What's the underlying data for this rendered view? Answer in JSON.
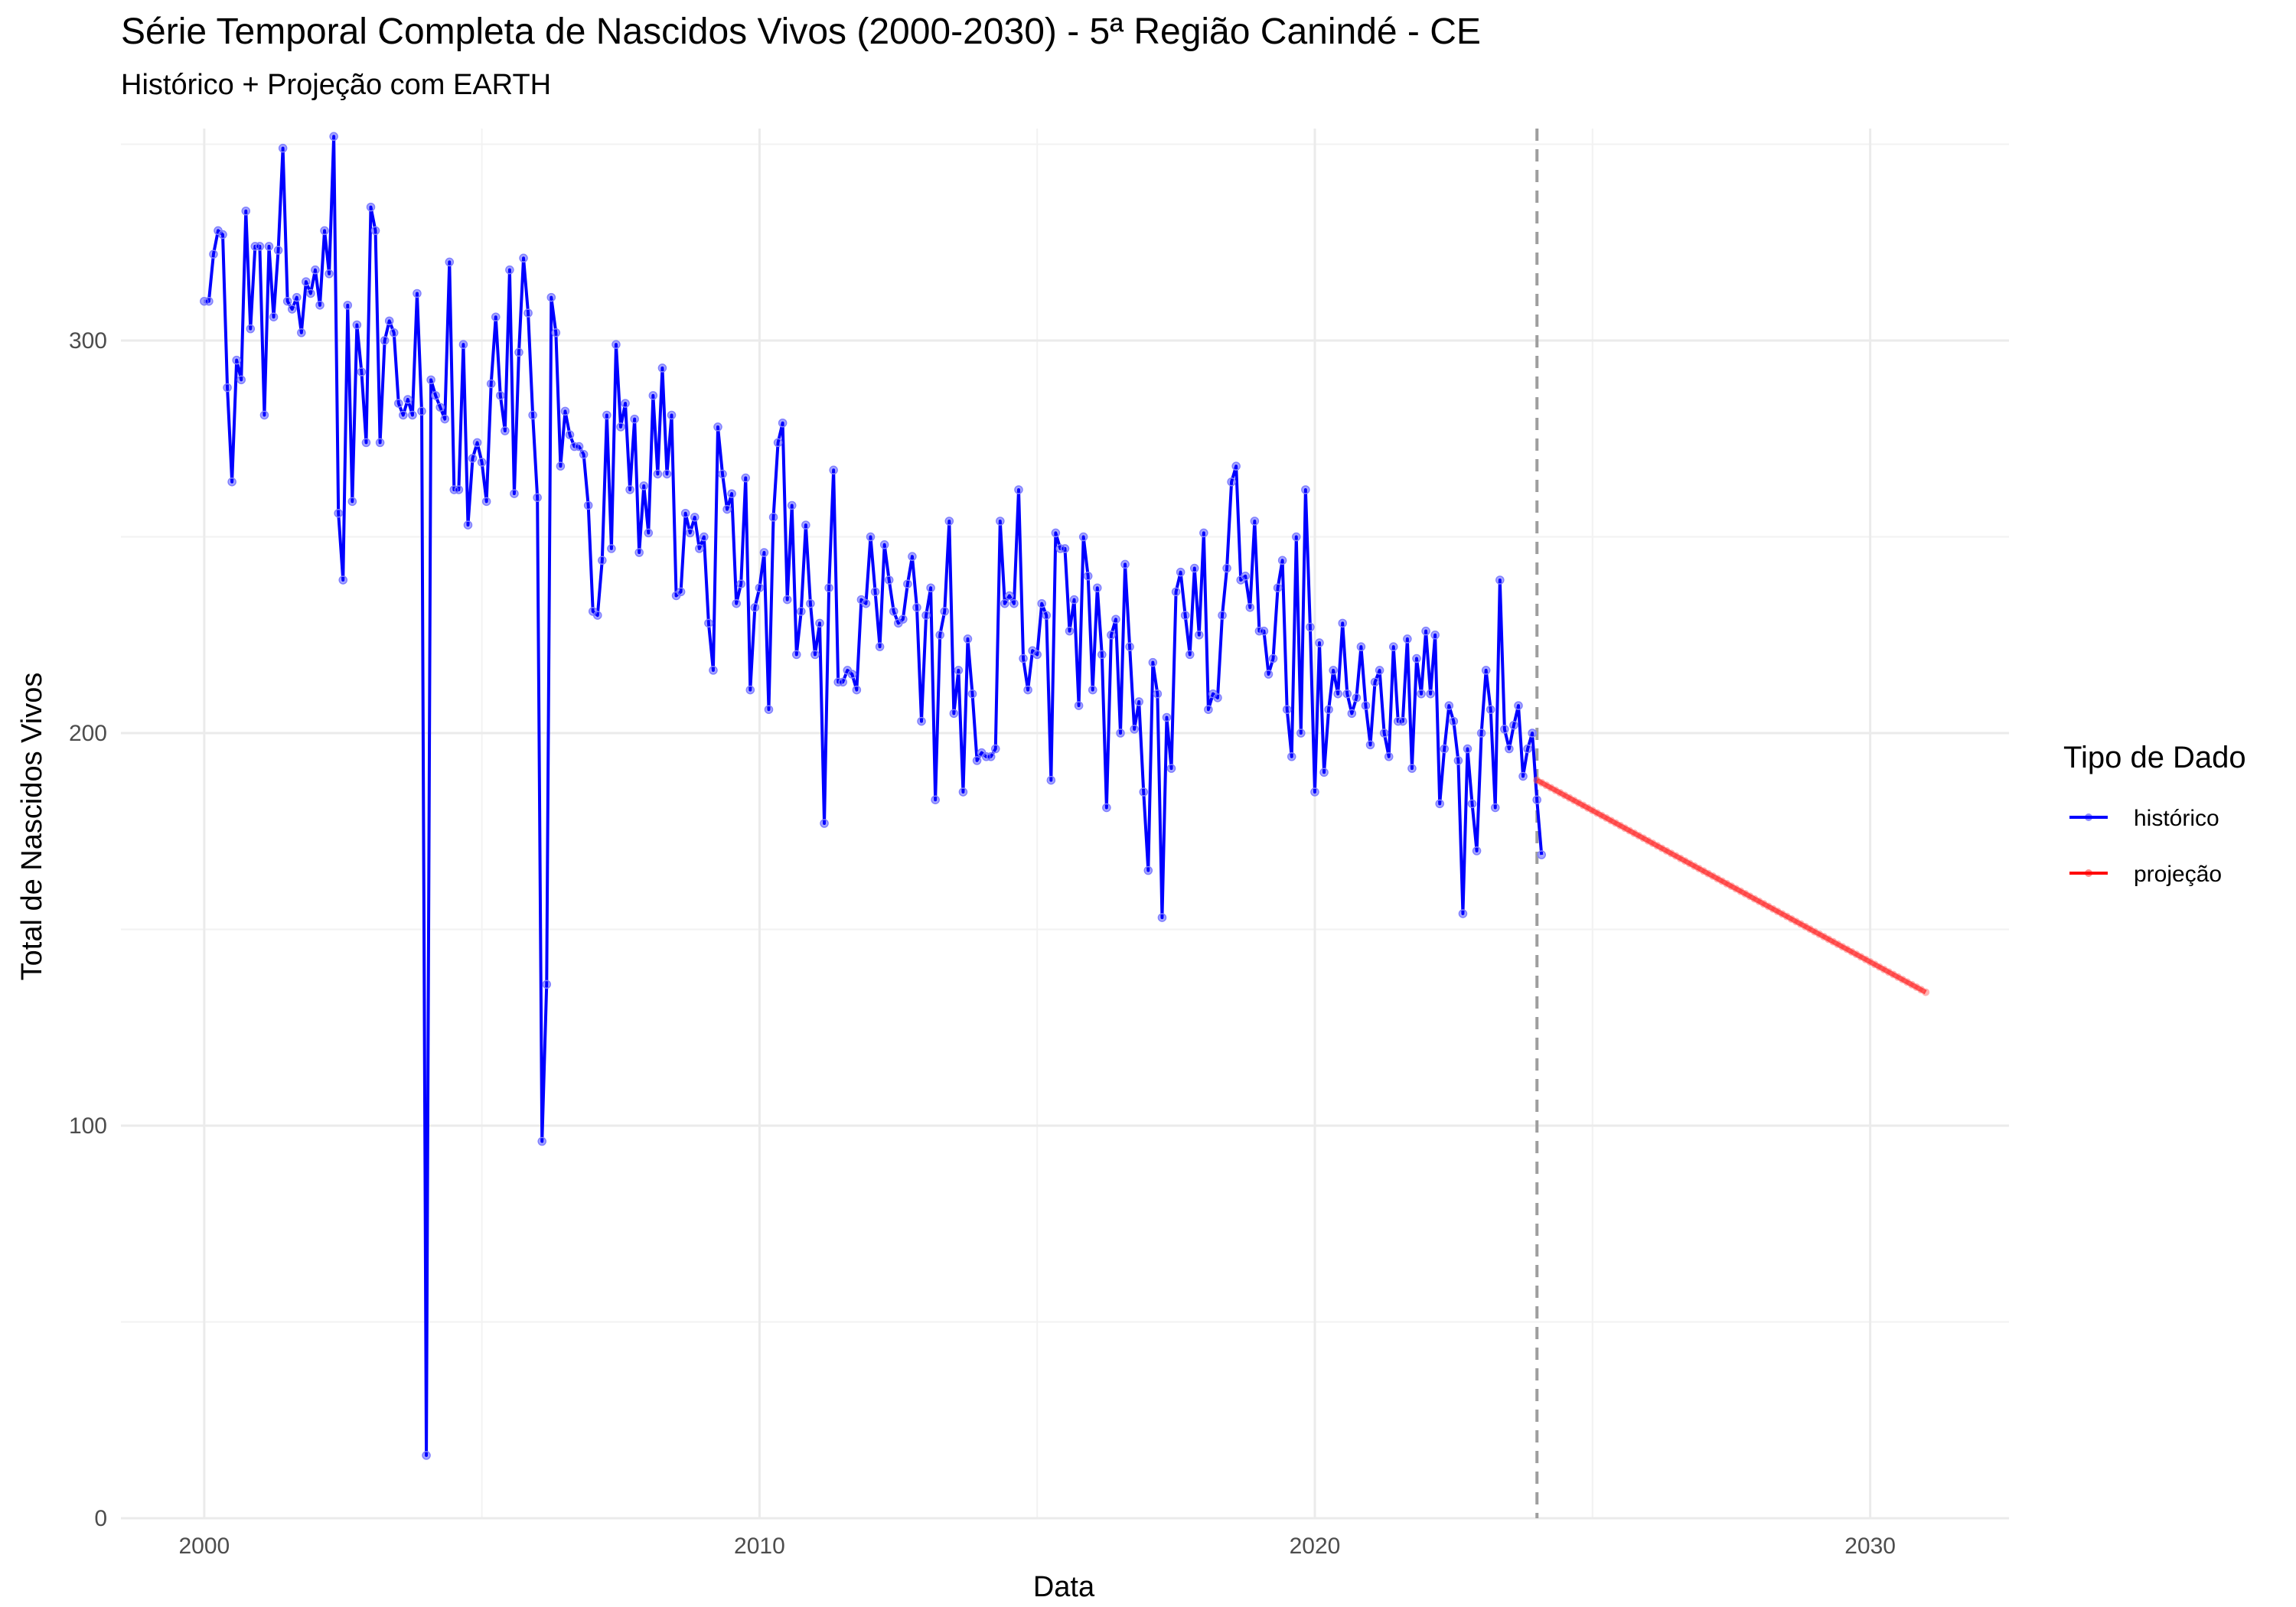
{
  "chart_data": {
    "type": "line",
    "title": "Série Temporal Completa de Nascidos Vivos (2000-2030) -  5ª Região Canindé - CE",
    "subtitle": "Histórico + Projeção com EARTH",
    "xlabel": "Data",
    "ylabel": "Total de Nascidos Vivos",
    "xlim": [
      1998.5,
      2032.5
    ],
    "ylim": [
      0,
      354
    ],
    "x_ticks": [
      2000,
      2010,
      2020,
      2030
    ],
    "y_ticks": [
      0,
      100,
      200,
      300
    ],
    "grid": true,
    "vline": {
      "x": 2024.0,
      "style": "dashed",
      "color": "#9e9e9e"
    },
    "legend": {
      "title": "Tipo de Dado",
      "position": "right",
      "entries": [
        {
          "label": "histórico",
          "color": "#0000ff"
        },
        {
          "label": "projeção",
          "color": "#ff0000"
        }
      ]
    },
    "series": [
      {
        "name": "histórico",
        "color": "#0000ff",
        "x_start": 2000.0,
        "x_step": 0.08333,
        "values": [
          310,
          310,
          322,
          328,
          327,
          288,
          264,
          295,
          290,
          333,
          303,
          324,
          324,
          281,
          324,
          306,
          323,
          349,
          310,
          308,
          311,
          302,
          315,
          312,
          318,
          309,
          328,
          317,
          352,
          256,
          239,
          309,
          259,
          304,
          292,
          274,
          334,
          328,
          274,
          300,
          305,
          302,
          284,
          281,
          285,
          281,
          312,
          282,
          16,
          290,
          286,
          283,
          280,
          320,
          262,
          262,
          299,
          253,
          270,
          274,
          269,
          259,
          289,
          306,
          286,
          277,
          318,
          261,
          297,
          321,
          307,
          281,
          260,
          96,
          136,
          311,
          302,
          268,
          282,
          276,
          273,
          273,
          271,
          258,
          231,
          230,
          244,
          281,
          247,
          299,
          278,
          284,
          262,
          280,
          246,
          263,
          251,
          286,
          266,
          293,
          266,
          281,
          235,
          236,
          256,
          251,
          255,
          247,
          250,
          228,
          216,
          278,
          266,
          257,
          261,
          233,
          238,
          265,
          211,
          232,
          237,
          246,
          206,
          255,
          274,
          279,
          234,
          258,
          220,
          231,
          253,
          233,
          220,
          228,
          177,
          237,
          267,
          213,
          213,
          216,
          215,
          211,
          234,
          233,
          250,
          236,
          222,
          248,
          239,
          231,
          228,
          229,
          238,
          245,
          232,
          203,
          230,
          237,
          183,
          225,
          231,
          254,
          205,
          216,
          185,
          224,
          210,
          193,
          195,
          194,
          194,
          196,
          254,
          233,
          235,
          233,
          262,
          219,
          211,
          221,
          220,
          233,
          230,
          188,
          251,
          247,
          247,
          226,
          234,
          207,
          250,
          240,
          211,
          237,
          220,
          181,
          225,
          229,
          200,
          243,
          222,
          201,
          208,
          185,
          165,
          218,
          210,
          153,
          204,
          191,
          236,
          241,
          230,
          220,
          242,
          225,
          251,
          206,
          210,
          209,
          230,
          242,
          264,
          268,
          239,
          240,
          232,
          254,
          226,
          226,
          215,
          219,
          237,
          244,
          206,
          194,
          250,
          200,
          262,
          227,
          185,
          223,
          190,
          206,
          216,
          210,
          228,
          210,
          205,
          209,
          222,
          207,
          197,
          213,
          216,
          200,
          194,
          222,
          203,
          203,
          224,
          191,
          219,
          210,
          226,
          210,
          225,
          182,
          196,
          207,
          203,
          193,
          154,
          196,
          182,
          170,
          200,
          216,
          206,
          181,
          239,
          201,
          196,
          202,
          207,
          189,
          196,
          200,
          183,
          169
        ]
      },
      {
        "name": "projeção",
        "color": "#ff0000",
        "x": [
          2024.0,
          2031.0
        ],
        "values": [
          188,
          134
        ]
      }
    ]
  }
}
